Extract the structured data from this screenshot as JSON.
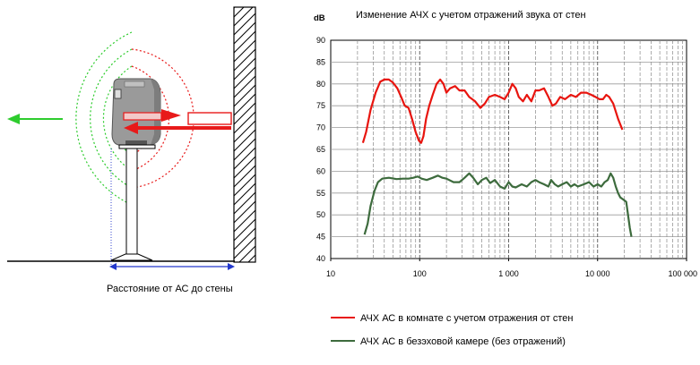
{
  "diagram": {
    "caption": "Расстояние от АС до стены"
  },
  "chart_data": {
    "type": "line",
    "title": "Изменение АЧХ с учетом отражений звука от стен",
    "ylabel": "dB",
    "xlabel": "",
    "x_scale": "log",
    "xlim": [
      10,
      100000
    ],
    "ylim": [
      40,
      90
    ],
    "x_ticks": [
      10,
      100,
      1000,
      10000,
      100000
    ],
    "x_tick_labels": [
      "10",
      "100",
      "1 000",
      "10 000",
      "100 000"
    ],
    "y_ticks": [
      40,
      45,
      50,
      55,
      60,
      65,
      70,
      75,
      80,
      85,
      90
    ],
    "grid": true,
    "legend_position": "bottom",
    "series": [
      {
        "name": "АЧХ АС в комнате с учетом отражения от стен",
        "color": "#e8150f",
        "points": [
          [
            23,
            66.5
          ],
          [
            25,
            69
          ],
          [
            28,
            74
          ],
          [
            32,
            78
          ],
          [
            36,
            80.5
          ],
          [
            40,
            81
          ],
          [
            45,
            81
          ],
          [
            50,
            80.3
          ],
          [
            56,
            79
          ],
          [
            62,
            77
          ],
          [
            68,
            75
          ],
          [
            75,
            74.5
          ],
          [
            82,
            72
          ],
          [
            90,
            69
          ],
          [
            98,
            67
          ],
          [
            104,
            66.5
          ],
          [
            110,
            68
          ],
          [
            118,
            72
          ],
          [
            128,
            75
          ],
          [
            140,
            77.5
          ],
          [
            155,
            80
          ],
          [
            170,
            81
          ],
          [
            185,
            80
          ],
          [
            200,
            78
          ],
          [
            220,
            79
          ],
          [
            250,
            79.5
          ],
          [
            280,
            78.5
          ],
          [
            320,
            78.5
          ],
          [
            360,
            77
          ],
          [
            420,
            76
          ],
          [
            480,
            74.5
          ],
          [
            540,
            75.5
          ],
          [
            600,
            77
          ],
          [
            700,
            77.5
          ],
          [
            800,
            77
          ],
          [
            900,
            76.5
          ],
          [
            1000,
            78
          ],
          [
            1100,
            80
          ],
          [
            1200,
            79
          ],
          [
            1300,
            77
          ],
          [
            1450,
            76
          ],
          [
            1600,
            77.5
          ],
          [
            1800,
            76
          ],
          [
            2000,
            78.5
          ],
          [
            2200,
            78.5
          ],
          [
            2500,
            79
          ],
          [
            2800,
            77
          ],
          [
            3100,
            75
          ],
          [
            3400,
            75.5
          ],
          [
            3800,
            77
          ],
          [
            4300,
            76.5
          ],
          [
            5000,
            77.5
          ],
          [
            5700,
            77
          ],
          [
            6500,
            78
          ],
          [
            7500,
            78
          ],
          [
            8500,
            77.5
          ],
          [
            9500,
            77
          ],
          [
            10500,
            76.5
          ],
          [
            11500,
            76.5
          ],
          [
            12500,
            77.5
          ],
          [
            13500,
            77
          ],
          [
            15000,
            75.5
          ],
          [
            17000,
            72
          ],
          [
            19000,
            69.5
          ]
        ]
      },
      {
        "name": "АЧХ АС в безэховой камере (без отражений)",
        "color": "#3d6b3d",
        "points": [
          [
            24,
            45.5
          ],
          [
            26,
            48
          ],
          [
            28,
            52
          ],
          [
            31,
            55.5
          ],
          [
            34,
            57.5
          ],
          [
            38,
            58.3
          ],
          [
            45,
            58.5
          ],
          [
            55,
            58.2
          ],
          [
            65,
            58.3
          ],
          [
            75,
            58.3
          ],
          [
            85,
            58.5
          ],
          [
            95,
            58.8
          ],
          [
            105,
            58.3
          ],
          [
            120,
            58
          ],
          [
            140,
            58.5
          ],
          [
            160,
            59
          ],
          [
            180,
            58.5
          ],
          [
            200,
            58.3
          ],
          [
            240,
            57.5
          ],
          [
            280,
            57.5
          ],
          [
            320,
            58.5
          ],
          [
            360,
            59.5
          ],
          [
            400,
            58.5
          ],
          [
            450,
            57
          ],
          [
            500,
            58
          ],
          [
            560,
            58.5
          ],
          [
            620,
            57.3
          ],
          [
            700,
            58
          ],
          [
            800,
            56.5
          ],
          [
            900,
            56
          ],
          [
            1000,
            57.5
          ],
          [
            1100,
            56.5
          ],
          [
            1200,
            56.3
          ],
          [
            1400,
            57
          ],
          [
            1600,
            56.5
          ],
          [
            1800,
            57.5
          ],
          [
            2000,
            58
          ],
          [
            2200,
            57.5
          ],
          [
            2500,
            57
          ],
          [
            2800,
            56.5
          ],
          [
            3000,
            58
          ],
          [
            3300,
            57
          ],
          [
            3600,
            56.5
          ],
          [
            4000,
            57
          ],
          [
            4500,
            57.5
          ],
          [
            5000,
            56.5
          ],
          [
            5500,
            57
          ],
          [
            6000,
            56.5
          ],
          [
            7000,
            57
          ],
          [
            8000,
            57.5
          ],
          [
            9000,
            56.5
          ],
          [
            10000,
            57
          ],
          [
            11000,
            56.5
          ],
          [
            12000,
            57.5
          ],
          [
            13000,
            58
          ],
          [
            14000,
            59.5
          ],
          [
            15000,
            58.5
          ],
          [
            16000,
            56.5
          ],
          [
            17000,
            55
          ],
          [
            18000,
            54
          ],
          [
            19500,
            53.5
          ],
          [
            21000,
            53
          ],
          [
            22000,
            50
          ],
          [
            23000,
            47
          ],
          [
            24000,
            45
          ]
        ]
      }
    ]
  }
}
